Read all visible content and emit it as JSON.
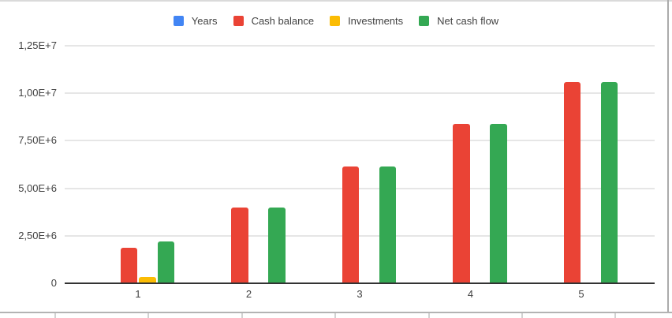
{
  "chart_data": {
    "type": "bar",
    "categories": [
      "1",
      "2",
      "3",
      "4",
      "5"
    ],
    "series": [
      {
        "name": "Years",
        "color": "#4285F4",
        "values": [
          1,
          2,
          3,
          4,
          5
        ]
      },
      {
        "name": "Cash balance",
        "color": "#EA4335",
        "values": [
          1850000,
          4000000,
          6150000,
          8400000,
          10600000
        ]
      },
      {
        "name": "Investments",
        "color": "#FBBC04",
        "values": [
          350000,
          0,
          0,
          0,
          0
        ]
      },
      {
        "name": "Net cash flow",
        "color": "#34A853",
        "values": [
          2200000,
          4000000,
          6150000,
          8400000,
          10600000
        ]
      }
    ],
    "y_ticks": [
      "0",
      "2,50E+6",
      "5,00E+6",
      "7,50E+6",
      "1,00E+7",
      "1,25E+7"
    ],
    "ylim": [
      0,
      12500000
    ],
    "grid": true,
    "legend_position": "top"
  },
  "colors": {
    "gridline": "#e6e6e6",
    "axis_line": "#333333",
    "axis_label": "#424242",
    "legend_text": "#424242",
    "chart_border": "#b3b3b3"
  }
}
